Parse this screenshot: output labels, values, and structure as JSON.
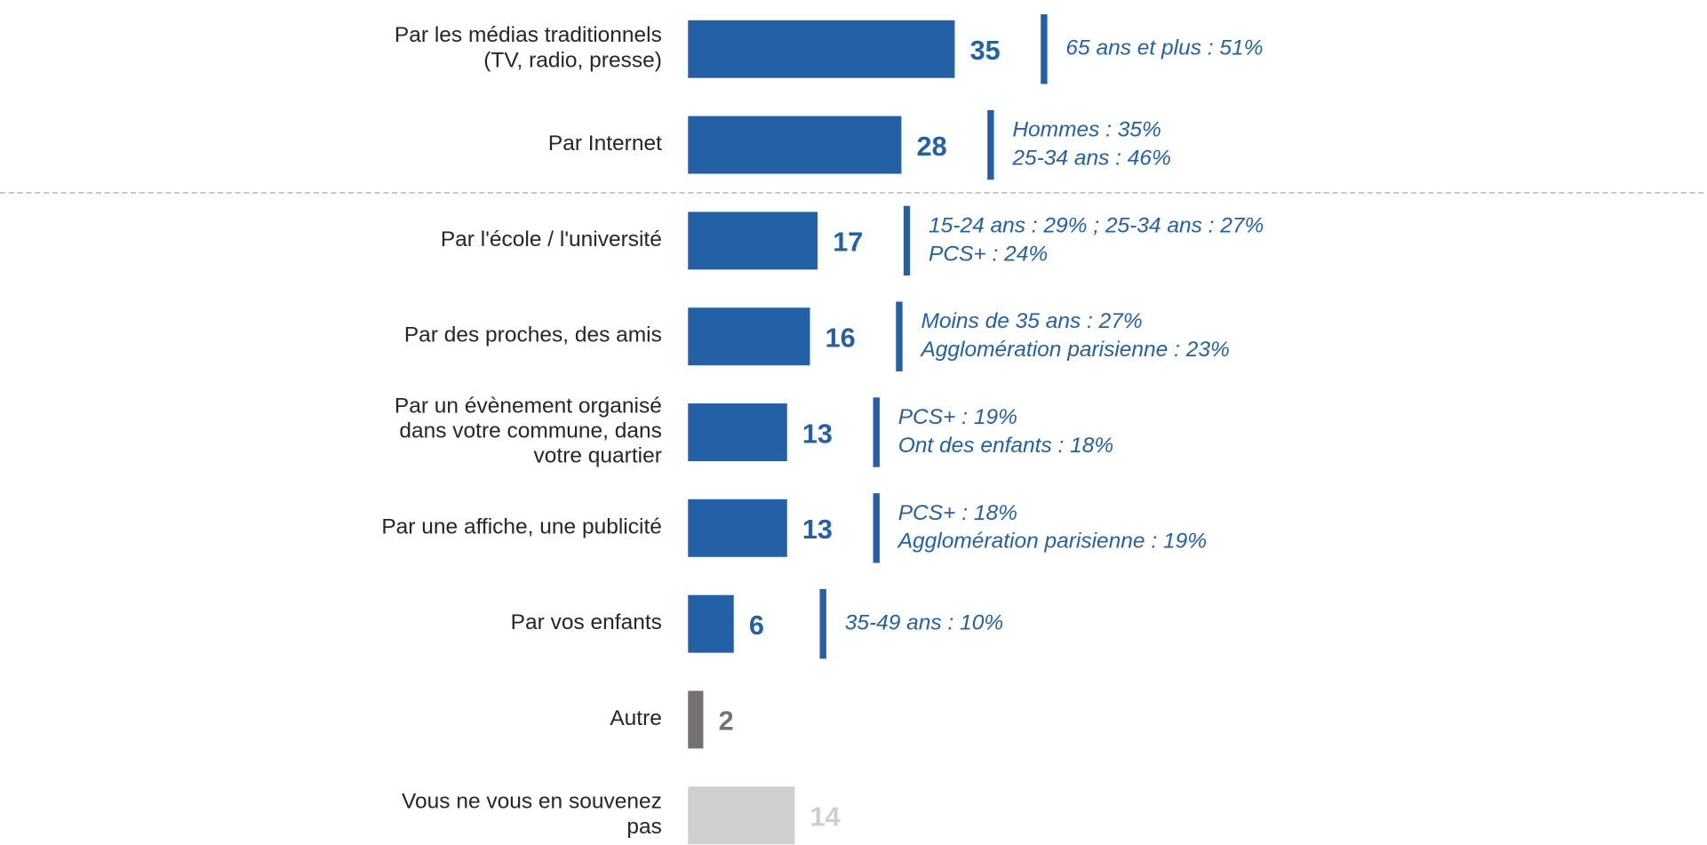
{
  "chart_data": {
    "type": "bar",
    "orientation": "horizontal",
    "categories": [
      "Par les médias traditionnels\n(TV, radio, presse)",
      "Par Internet",
      "Par l'école / l'université",
      "Par des proches, des amis",
      "Par un évènement organisé\ndans votre commune, dans\nvotre quartier",
      "Par une affiche, une publicité",
      "Par vos enfants",
      "Autre",
      "Vous ne vous en souvenez\npas"
    ],
    "values": [
      35,
      28,
      17,
      16,
      13,
      13,
      6,
      2,
      14
    ],
    "colors": [
      "#2360a5",
      "#2360a5",
      "#2360a5",
      "#2360a5",
      "#2360a5",
      "#2360a5",
      "#2360a5",
      "#767171",
      "#d0cece"
    ],
    "annotations": [
      [
        "65 ans et plus : 51%"
      ],
      [
        "Hommes : 35%",
        "25-34 ans : 46%"
      ],
      [
        "15-24 ans : 29% ; 25-34 ans : 27%",
        "PCS+ : 24%"
      ],
      [
        "Moins de 35 ans : 27%",
        "Agglomération parisienne : 23%"
      ],
      [
        "PCS+ : 19%",
        "Ont des enfants : 18%"
      ],
      [
        "PCS+ : 18%",
        "Agglomération parisienne : 19%"
      ],
      [
        "35-49 ans : 10%"
      ],
      null,
      null
    ]
  }
}
